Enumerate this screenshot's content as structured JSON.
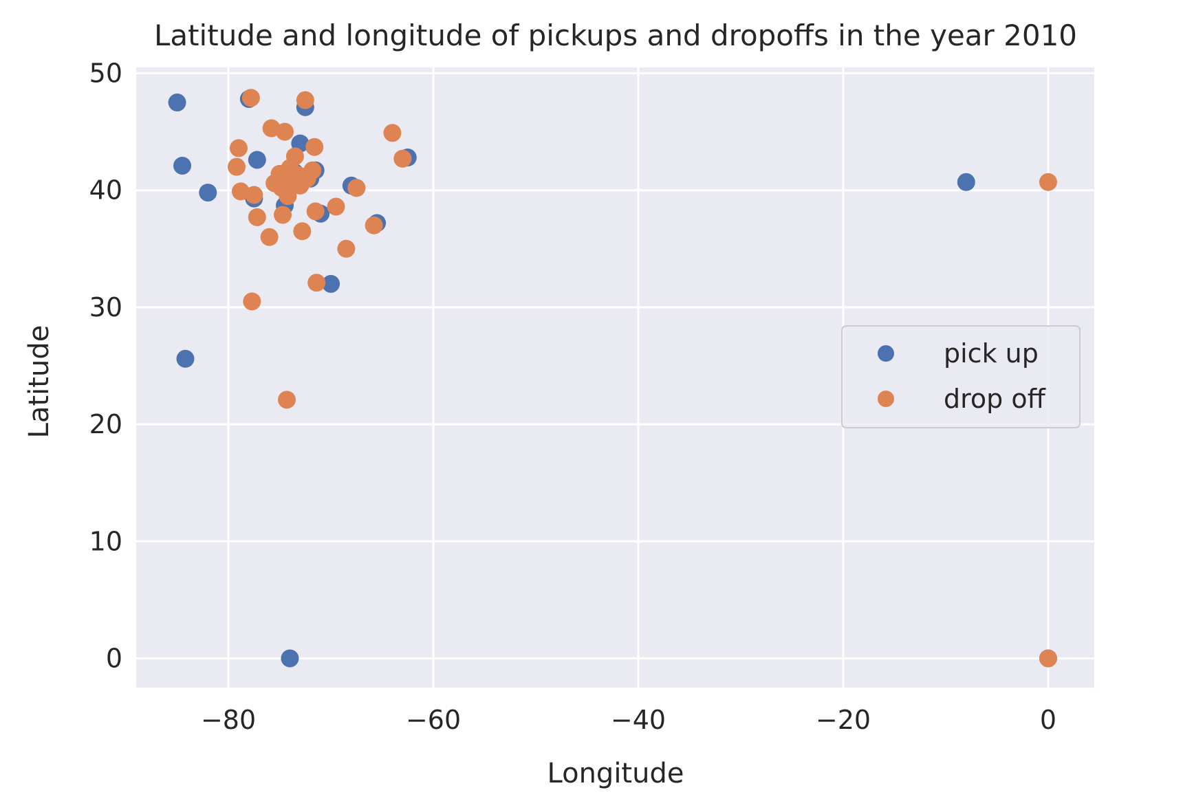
{
  "chart_data": {
    "type": "scatter",
    "title": "Latitude and longitude of pickups and dropoffs in the year 2010",
    "xlabel": "Longitude",
    "ylabel": "Latitude",
    "xlim": [
      -89,
      4.5
    ],
    "ylim": [
      -2.5,
      50.5
    ],
    "x_ticks": [
      -80,
      -60,
      -40,
      -20,
      0
    ],
    "x_tick_labels": [
      "−80",
      "−60",
      "−40",
      "−20",
      "0"
    ],
    "y_ticks": [
      0,
      10,
      20,
      30,
      40,
      50
    ],
    "y_tick_labels": [
      "0",
      "10",
      "20",
      "30",
      "40",
      "50"
    ],
    "grid": true,
    "legend_position": "center-right",
    "series": [
      {
        "name": "pick up",
        "color": "#4c72b0",
        "points": [
          [
            -85.0,
            47.5
          ],
          [
            -84.5,
            42.1
          ],
          [
            -84.2,
            25.6
          ],
          [
            -82.0,
            39.8
          ],
          [
            -78.0,
            47.8
          ],
          [
            -77.5,
            39.3
          ],
          [
            -77.2,
            42.6
          ],
          [
            -74.5,
            38.7
          ],
          [
            -74.0,
            0.0
          ],
          [
            -73.5,
            41.5
          ],
          [
            -73.0,
            44.0
          ],
          [
            -72.5,
            47.1
          ],
          [
            -72.0,
            41.0
          ],
          [
            -71.5,
            41.7
          ],
          [
            -71.0,
            38.0
          ],
          [
            -70.0,
            32.0
          ],
          [
            -68.0,
            40.4
          ],
          [
            -67.5,
            40.2
          ],
          [
            -65.5,
            37.2
          ],
          [
            -62.5,
            42.8
          ],
          [
            -8.0,
            40.7
          ],
          [
            0.0,
            0.0
          ]
        ]
      },
      {
        "name": "drop off",
        "color": "#dd8452",
        "points": [
          [
            -79.0,
            43.6
          ],
          [
            -79.2,
            42.0
          ],
          [
            -78.8,
            39.9
          ],
          [
            -77.8,
            47.9
          ],
          [
            -77.7,
            30.5
          ],
          [
            -77.5,
            39.6
          ],
          [
            -77.2,
            37.7
          ],
          [
            -76.0,
            36.0
          ],
          [
            -75.8,
            45.3
          ],
          [
            -75.5,
            40.6
          ],
          [
            -75.0,
            41.4
          ],
          [
            -74.8,
            40.2
          ],
          [
            -74.7,
            37.9
          ],
          [
            -74.5,
            45.0
          ],
          [
            -74.3,
            22.1
          ],
          [
            -74.2,
            39.5
          ],
          [
            -74.0,
            41.9
          ],
          [
            -73.8,
            40.8
          ],
          [
            -73.5,
            42.9
          ],
          [
            -73.2,
            41.3
          ],
          [
            -73.0,
            40.4
          ],
          [
            -72.8,
            36.5
          ],
          [
            -72.5,
            47.7
          ],
          [
            -72.3,
            41.0
          ],
          [
            -71.8,
            41.7
          ],
          [
            -71.6,
            43.7
          ],
          [
            -71.5,
            38.2
          ],
          [
            -71.4,
            32.1
          ],
          [
            -69.5,
            38.6
          ],
          [
            -68.5,
            35.0
          ],
          [
            -67.5,
            40.2
          ],
          [
            -65.8,
            37.0
          ],
          [
            -64.0,
            44.9
          ],
          [
            -63.0,
            42.7
          ],
          [
            0.0,
            40.7
          ],
          [
            0.0,
            0.0
          ]
        ]
      }
    ]
  }
}
